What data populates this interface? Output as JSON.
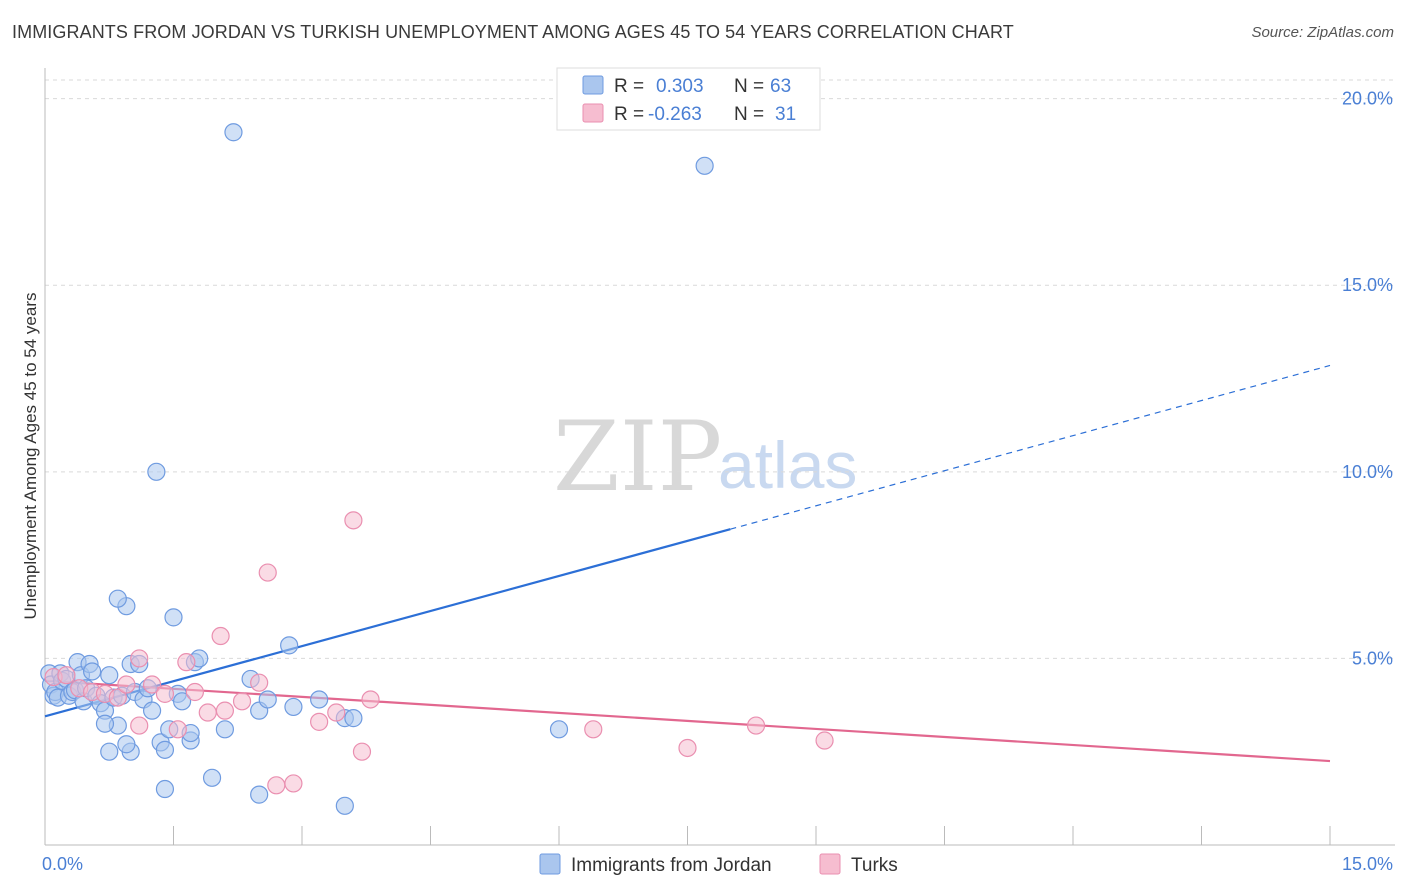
{
  "title": "IMMIGRANTS FROM JORDAN VS TURKISH UNEMPLOYMENT AMONG AGES 45 TO 54 YEARS CORRELATION CHART",
  "source": "Source: ZipAtlas.com",
  "watermark": {
    "zip": "ZIP",
    "atlas": "atlas"
  },
  "colors": {
    "blue_fill": "#aac6ee",
    "blue_stroke": "#6f9be0",
    "blue_line": "#2c6fd6",
    "pink_fill": "#f6bdd0",
    "pink_stroke": "#ea8fb0",
    "pink_line": "#e2678f",
    "label_blue": "#4a7fd4",
    "grid": "#d9d9d9"
  },
  "legend": {
    "rows": [
      {
        "r_label": "R =",
        "r_value": "0.303",
        "n_label": "N =",
        "n_value": "63"
      },
      {
        "r_label": "R =",
        "r_value": "-0.263",
        "n_label": "N =",
        "n_value": "31"
      }
    ]
  },
  "chart_data": {
    "type": "scatter",
    "xlabel": "",
    "ylabel": "Unemployment Among Ages 45 to 54 years",
    "xlim": [
      0,
      15
    ],
    "ylim": [
      0,
      20.5
    ],
    "x_tick_labels": [
      "0.0%",
      "15.0%"
    ],
    "y_ticks": [
      5,
      10,
      15,
      20
    ],
    "y_tick_labels": [
      "5.0%",
      "10.0%",
      "15.0%",
      "20.0%"
    ],
    "grid": true,
    "series": [
      {
        "name": "Immigrants from Jordan",
        "color": "#aac6ee",
        "points": [
          [
            0.05,
            4.6
          ],
          [
            0.07,
            4.3
          ],
          [
            0.1,
            4.0
          ],
          [
            0.12,
            4.1
          ],
          [
            0.15,
            3.95
          ],
          [
            0.18,
            4.6
          ],
          [
            0.2,
            4.4
          ],
          [
            0.25,
            4.45
          ],
          [
            0.28,
            4.0
          ],
          [
            0.32,
            4.1
          ],
          [
            0.35,
            4.15
          ],
          [
            0.38,
            4.9
          ],
          [
            0.42,
            4.55
          ],
          [
            0.45,
            3.85
          ],
          [
            0.48,
            4.2
          ],
          [
            0.52,
            4.85
          ],
          [
            0.55,
            4.65
          ],
          [
            0.6,
            4.0
          ],
          [
            0.65,
            3.8
          ],
          [
            0.7,
            3.6
          ],
          [
            0.75,
            4.55
          ],
          [
            0.8,
            3.95
          ],
          [
            0.85,
            3.2
          ],
          [
            0.9,
            4.0
          ],
          [
            0.95,
            6.4
          ],
          [
            1.0,
            4.85
          ],
          [
            1.05,
            4.1
          ],
          [
            1.1,
            4.85
          ],
          [
            1.15,
            3.9
          ],
          [
            1.2,
            4.2
          ],
          [
            1.25,
            3.6
          ],
          [
            1.35,
            2.75
          ],
          [
            1.4,
            2.55
          ],
          [
            1.45,
            3.1
          ],
          [
            1.55,
            4.05
          ],
          [
            1.6,
            3.85
          ],
          [
            1.7,
            2.8
          ],
          [
            1.75,
            4.9
          ],
          [
            1.8,
            5.0
          ],
          [
            2.1,
            3.1
          ],
          [
            2.4,
            4.45
          ],
          [
            2.5,
            3.6
          ],
          [
            2.6,
            3.9
          ],
          [
            2.85,
            5.35
          ],
          [
            2.9,
            3.7
          ],
          [
            3.2,
            3.9
          ],
          [
            3.5,
            3.4
          ],
          [
            3.6,
            3.4
          ],
          [
            1.3,
            10.0
          ],
          [
            1.5,
            6.1
          ],
          [
            0.85,
            6.6
          ],
          [
            2.2,
            19.1
          ],
          [
            7.7,
            18.2
          ],
          [
            6.0,
            3.1
          ],
          [
            0.7,
            3.25
          ],
          [
            1.0,
            2.5
          ],
          [
            0.95,
            2.7
          ],
          [
            0.75,
            2.5
          ],
          [
            1.4,
            1.5
          ],
          [
            1.95,
            1.8
          ],
          [
            2.5,
            1.35
          ],
          [
            3.5,
            1.05
          ],
          [
            1.7,
            3.0
          ]
        ]
      },
      {
        "name": "Turks",
        "color": "#f6bdd0",
        "points": [
          [
            0.1,
            4.5
          ],
          [
            0.25,
            4.55
          ],
          [
            0.4,
            4.2
          ],
          [
            0.55,
            4.1
          ],
          [
            0.7,
            4.05
          ],
          [
            0.85,
            3.95
          ],
          [
            0.95,
            4.3
          ],
          [
            1.1,
            5.0
          ],
          [
            1.25,
            4.3
          ],
          [
            1.4,
            4.05
          ],
          [
            1.65,
            4.9
          ],
          [
            1.75,
            4.1
          ],
          [
            1.9,
            3.55
          ],
          [
            2.05,
            5.6
          ],
          [
            2.1,
            3.6
          ],
          [
            2.3,
            3.85
          ],
          [
            2.5,
            4.35
          ],
          [
            2.6,
            7.3
          ],
          [
            2.7,
            1.6
          ],
          [
            2.9,
            1.65
          ],
          [
            3.2,
            3.3
          ],
          [
            3.4,
            3.55
          ],
          [
            3.6,
            8.7
          ],
          [
            3.7,
            2.5
          ],
          [
            3.8,
            3.9
          ],
          [
            6.4,
            3.1
          ],
          [
            7.5,
            2.6
          ],
          [
            8.3,
            3.2
          ],
          [
            9.1,
            2.8
          ],
          [
            1.55,
            3.1
          ],
          [
            1.1,
            3.2
          ]
        ]
      }
    ],
    "trendlines": [
      {
        "series": "Immigrants from Jordan",
        "from": [
          0,
          3.45
        ],
        "to": [
          15,
          12.85
        ],
        "solid_until_x": 8.0
      },
      {
        "series": "Turks",
        "from": [
          0,
          4.4
        ],
        "to": [
          15,
          2.25
        ]
      }
    ]
  },
  "bottom_legend": [
    {
      "label": "Immigrants from Jordan",
      "color": "#aac6ee"
    },
    {
      "label": "Turks",
      "color": "#f6bdd0"
    }
  ]
}
